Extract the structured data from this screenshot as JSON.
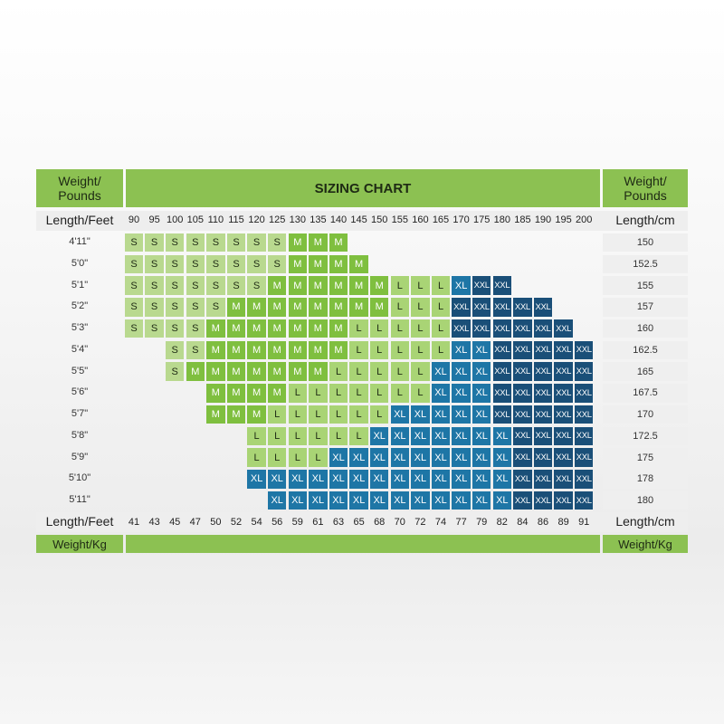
{
  "title": "SIZING CHART",
  "corner_left": "Weight/\nPounds",
  "corner_right": "Weight/\nPounds",
  "header_left_label": "Length/Feet",
  "header_right_label": "Length/cm",
  "footer_left_label": "Length/Feet",
  "footer_right_label": "Length/cm",
  "kg_left_label": "Weight/Kg",
  "kg_right_label": "Weight/Kg",
  "colors": {
    "S": "#b9d98f",
    "M": "#7fbf3f",
    "L": "#a9d475",
    "XL": "#1e76a6",
    "XXL": "#1a4f78",
    "header_green": "#8cc152"
  },
  "chart_data": {
    "type": "table",
    "title": "SIZING CHART",
    "weights_lb": [
      "90",
      "95",
      "100",
      "105",
      "110",
      "115",
      "120",
      "125",
      "130",
      "135",
      "140",
      "145",
      "150",
      "155",
      "160",
      "165",
      "170",
      "175",
      "180",
      "185",
      "190",
      "195",
      "200"
    ],
    "weights_kg": [
      "41",
      "43",
      "45",
      "47",
      "50",
      "52",
      "54",
      "56",
      "59",
      "61",
      "63",
      "65",
      "68",
      "70",
      "72",
      "74",
      "77",
      "79",
      "82",
      "84",
      "86",
      "89",
      "91"
    ],
    "rows": [
      {
        "height_ft": "4'11\"",
        "height_cm": "150",
        "start": 0,
        "sizes": [
          "S",
          "S",
          "S",
          "S",
          "S",
          "S",
          "S",
          "S",
          "M",
          "M",
          "M"
        ]
      },
      {
        "height_ft": "5'0\"",
        "height_cm": "152.5",
        "start": 0,
        "sizes": [
          "S",
          "S",
          "S",
          "S",
          "S",
          "S",
          "S",
          "S",
          "M",
          "M",
          "M",
          "M"
        ]
      },
      {
        "height_ft": "5'1\"",
        "height_cm": "155",
        "start": 0,
        "sizes": [
          "S",
          "S",
          "S",
          "S",
          "S",
          "S",
          "S",
          "M",
          "M",
          "M",
          "M",
          "M",
          "M",
          "L",
          "L",
          "L",
          "XL",
          "XXL",
          "XXL"
        ]
      },
      {
        "height_ft": "5'2\"",
        "height_cm": "157",
        "start": 0,
        "sizes": [
          "S",
          "S",
          "S",
          "S",
          "S",
          "M",
          "M",
          "M",
          "M",
          "M",
          "M",
          "M",
          "M",
          "L",
          "L",
          "L",
          "XXL",
          "XXL",
          "XXL",
          "XXL",
          "XXL"
        ]
      },
      {
        "height_ft": "5'3\"",
        "height_cm": "160",
        "start": 0,
        "sizes": [
          "S",
          "S",
          "S",
          "S",
          "M",
          "M",
          "M",
          "M",
          "M",
          "M",
          "M",
          "L",
          "L",
          "L",
          "L",
          "L",
          "XXL",
          "XXL",
          "XXL",
          "XXL",
          "XXL",
          "XXL"
        ]
      },
      {
        "height_ft": "5'4\"",
        "height_cm": "162.5",
        "start": 2,
        "sizes": [
          "S",
          "S",
          "M",
          "M",
          "M",
          "M",
          "M",
          "M",
          "M",
          "L",
          "L",
          "L",
          "L",
          "L",
          "XL",
          "XL",
          "XXL",
          "XXL",
          "XXL",
          "XXL",
          "XXL"
        ]
      },
      {
        "height_ft": "5'5\"",
        "height_cm": "165",
        "start": 2,
        "sizes": [
          "S",
          "M",
          "M",
          "M",
          "M",
          "M",
          "M",
          "M",
          "L",
          "L",
          "L",
          "L",
          "L",
          "XL",
          "XL",
          "XL",
          "XXL",
          "XXL",
          "XXL",
          "XXL",
          "XXL"
        ]
      },
      {
        "height_ft": "5'6\"",
        "height_cm": "167.5",
        "start": 4,
        "sizes": [
          "M",
          "M",
          "M",
          "M",
          "L",
          "L",
          "L",
          "L",
          "L",
          "L",
          "L",
          "XL",
          "XL",
          "XL",
          "XXL",
          "XXL",
          "XXL",
          "XXL",
          "XXL"
        ]
      },
      {
        "height_ft": "5'7\"",
        "height_cm": "170",
        "start": 4,
        "sizes": [
          "M",
          "M",
          "M",
          "L",
          "L",
          "L",
          "L",
          "L",
          "L",
          "XL",
          "XL",
          "XL",
          "XL",
          "XL",
          "XXL",
          "XXL",
          "XXL",
          "XXL",
          "XXL"
        ]
      },
      {
        "height_ft": "5'8\"",
        "height_cm": "172.5",
        "start": 6,
        "sizes": [
          "L",
          "L",
          "L",
          "L",
          "L",
          "L",
          "XL",
          "XL",
          "XL",
          "XL",
          "XL",
          "XL",
          "XL",
          "XXL",
          "XXL",
          "XXL",
          "XXL"
        ]
      },
      {
        "height_ft": "5'9\"",
        "height_cm": "175",
        "start": 6,
        "sizes": [
          "L",
          "L",
          "L",
          "L",
          "XL",
          "XL",
          "XL",
          "XL",
          "XL",
          "XL",
          "XL",
          "XL",
          "XL",
          "XXL",
          "XXL",
          "XXL",
          "XXL"
        ]
      },
      {
        "height_ft": "5'10\"",
        "height_cm": "178",
        "start": 6,
        "sizes": [
          "XL",
          "XL",
          "XL",
          "XL",
          "XL",
          "XL",
          "XL",
          "XL",
          "XL",
          "XL",
          "XL",
          "XL",
          "XL",
          "XXL",
          "XXL",
          "XXL",
          "XXL"
        ]
      },
      {
        "height_ft": "5'11\"",
        "height_cm": "180",
        "start": 7,
        "sizes": [
          "XL",
          "XL",
          "XL",
          "XL",
          "XL",
          "XL",
          "XL",
          "XL",
          "XL",
          "XL",
          "XL",
          "XL",
          "XXL",
          "XXL",
          "XXL",
          "XXL"
        ]
      }
    ]
  }
}
